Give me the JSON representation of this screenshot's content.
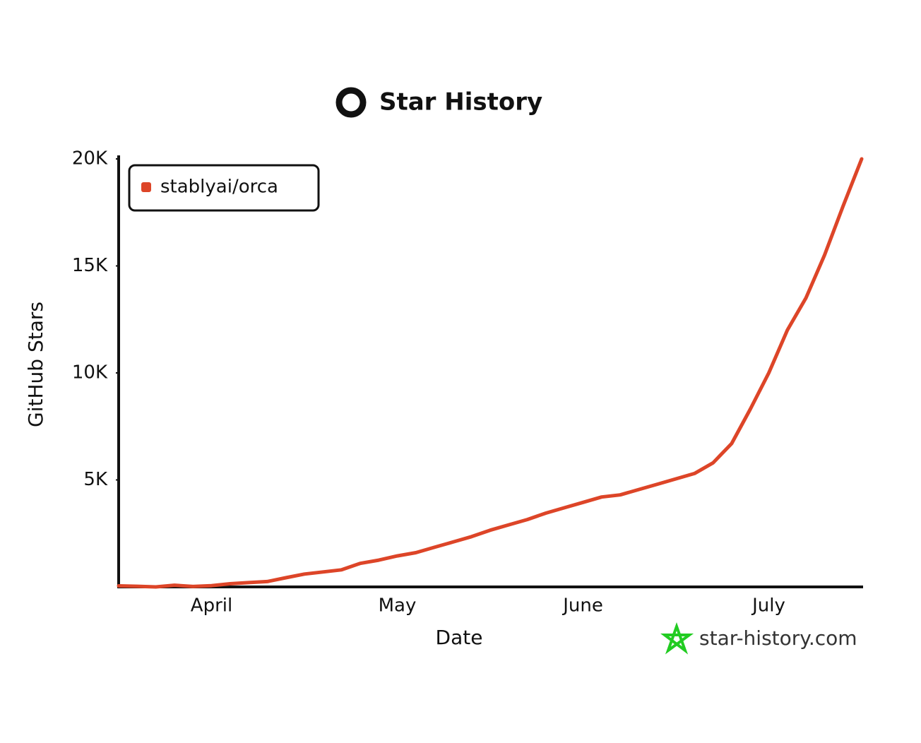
{
  "chart_data": {
    "type": "line",
    "title": "Star History",
    "x_label": "Date",
    "y_label": "GitHub Stars",
    "watermark": "star-history.com",
    "categories": [
      null,
      null,
      null,
      null,
      null,
      "April",
      null,
      null,
      null,
      null,
      null,
      null,
      null,
      null,
      null,
      "May",
      null,
      null,
      null,
      null,
      null,
      null,
      null,
      null,
      null,
      "June",
      null,
      null,
      null,
      null,
      null,
      null,
      null,
      null,
      null,
      "July",
      null,
      null,
      null,
      null,
      null
    ],
    "series": [
      {
        "name": "stablyai/orca",
        "color": "#dd4528",
        "values": [
          50,
          30,
          0,
          80,
          20,
          60,
          150,
          200,
          250,
          430,
          600,
          700,
          800,
          1100,
          1250,
          1450,
          1600,
          1850,
          2100,
          2350,
          2650,
          2900,
          3150,
          3450,
          3700,
          3950,
          4200,
          4300,
          4550,
          4800,
          5050,
          5300,
          5800,
          6700,
          8300,
          10000,
          12000,
          13500,
          15500,
          17800,
          20000
        ]
      }
    ],
    "ylim": [
      0,
      20000
    ],
    "yticks": [
      {
        "value": 5000,
        "label": "5K"
      },
      {
        "value": 10000,
        "label": "10K"
      },
      {
        "value": 15000,
        "label": "15K"
      },
      {
        "value": 20000,
        "label": "20K"
      }
    ],
    "legend": "upper-left",
    "grid": false
  }
}
